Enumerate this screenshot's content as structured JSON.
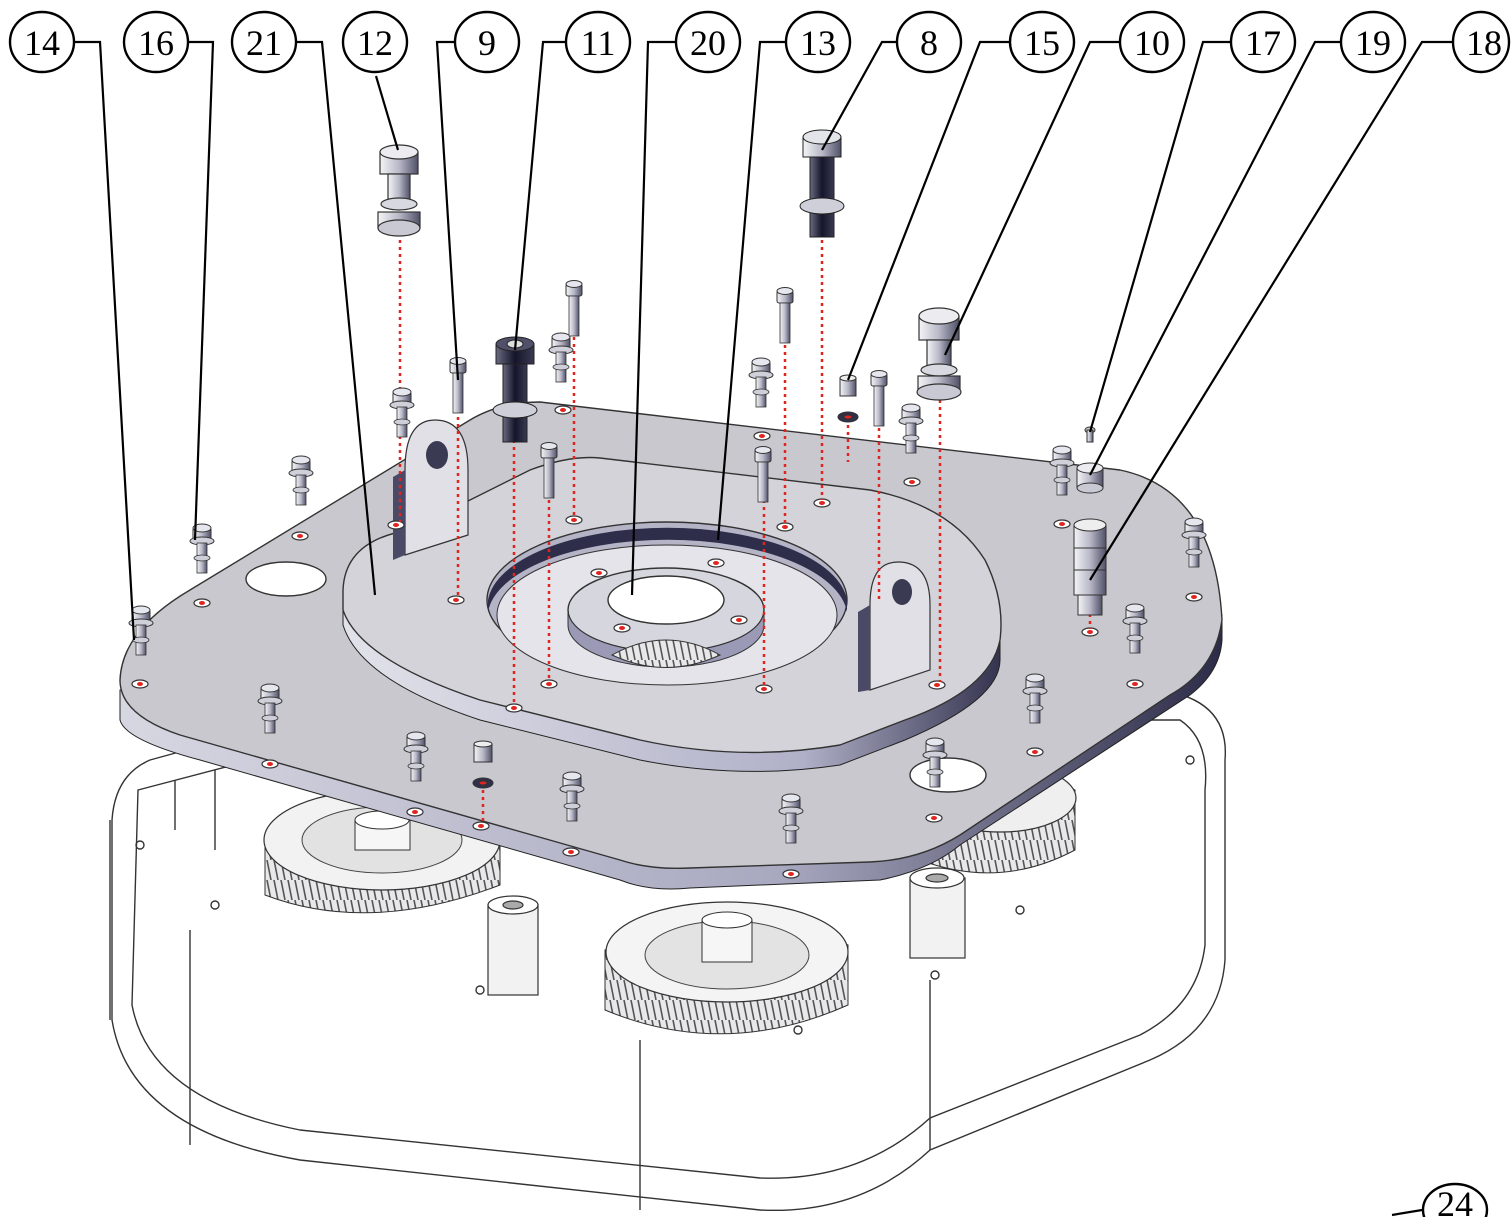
{
  "callouts": [
    {
      "id": "c14",
      "label": "14"
    },
    {
      "id": "c16",
      "label": "16"
    },
    {
      "id": "c21",
      "label": "21"
    },
    {
      "id": "c12",
      "label": "12"
    },
    {
      "id": "c9",
      "label": "9"
    },
    {
      "id": "c11",
      "label": "11"
    },
    {
      "id": "c20",
      "label": "20"
    },
    {
      "id": "c13",
      "label": "13"
    },
    {
      "id": "c8",
      "label": "8"
    },
    {
      "id": "c15",
      "label": "15"
    },
    {
      "id": "c10",
      "label": "10"
    },
    {
      "id": "c17",
      "label": "17"
    },
    {
      "id": "c19",
      "label": "19"
    },
    {
      "id": "c18",
      "label": "18"
    },
    {
      "id": "c24",
      "label": "24"
    }
  ],
  "colors": {
    "plate_top": "#c9c9cf",
    "plate_side": "#8e8ea8",
    "plate_dark": "#2a2a40",
    "housing_line": "#333333",
    "hole_marker": "#e0241f",
    "ink": "#000000"
  },
  "parts": {
    "main_plate": "base-cover-plate",
    "raised_plate": "bearing-carrier-plate",
    "gear_housing": "gearbox-housing",
    "gears": [
      "helical-gear-left",
      "helical-gear-center",
      "helical-gear-right"
    ]
  }
}
